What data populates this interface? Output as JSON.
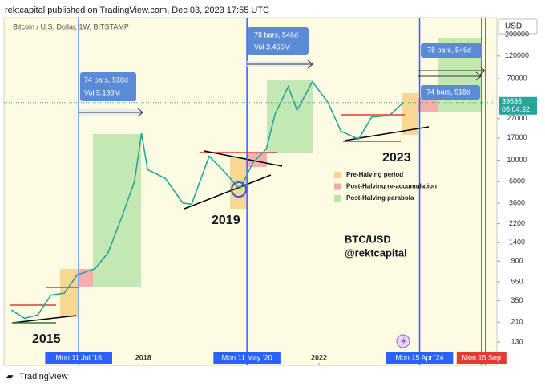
{
  "header": "rektcapital published on TradingView.com, Dec 03, 2023 17:55 UTC",
  "footer": "TradingView",
  "chart_data": {
    "type": "line",
    "title": "Bitcoin / U.S. Dollar, 1W, BITSTAMP",
    "currency": "USD",
    "countdown": "06:04:32",
    "last_price": 39536,
    "color": "#26a69a",
    "log_scale": true,
    "x": [
      2015.0,
      2015.3,
      2015.6,
      2015.9,
      2016.2,
      2016.5,
      2016.9,
      2017.2,
      2017.5,
      2017.8,
      2017.96,
      2018.1,
      2018.5,
      2018.9,
      2019.1,
      2019.5,
      2019.8,
      2020.2,
      2020.5,
      2020.8,
      2021.0,
      2021.3,
      2021.5,
      2021.85,
      2022.2,
      2022.5,
      2022.9,
      2023.2,
      2023.6,
      2023.92
    ],
    "values": [
      280,
      230,
      250,
      400,
      420,
      650,
      750,
      1100,
      2500,
      6000,
      19000,
      8000,
      6500,
      3600,
      3500,
      11000,
      8000,
      5000,
      9500,
      13000,
      30000,
      58000,
      33000,
      65000,
      40000,
      20000,
      16500,
      28000,
      29000,
      39536
    ],
    "xlim": [
      2014.83,
      2026.05
    ],
    "ylim": [
      75,
      300000
    ],
    "xticks": [
      {
        "value": 2016.53,
        "label": "Mon 11 Jul '16"
      },
      2018,
      {
        "value": 2020.36,
        "label": "Mon 11 May '20"
      },
      2022,
      {
        "value": 2024.29,
        "label": "Mon 15 Apr '24"
      },
      {
        "value": 2025.7,
        "label": "Mon 15 Sep"
      }
    ],
    "yticks": [
      200000,
      120000,
      70000,
      27000,
      17000,
      10000,
      6000,
      3600,
      2200,
      1400,
      900,
      550,
      350,
      210,
      130
    ],
    "legend": [
      {
        "name": "Pre-Halving period",
        "color": "#f9d38a"
      },
      {
        "name": "Post-Halving re-accumulation",
        "color": "#f4a7a7"
      },
      {
        "name": "Post-Halving parabola",
        "color": "#b5e3a8"
      }
    ],
    "annotations": {
      "cycle_2015": "2015",
      "cycle_2019": "2019",
      "cycle_2023": "2023",
      "pair": "BTC/USD",
      "author": "@rektcapital"
    },
    "measures": [
      {
        "bars": "74 bars, 518d",
        "vol": "Vol 5.133M"
      },
      {
        "bars": "78 bars, 546d",
        "vol": "Vol 3.466M"
      },
      {
        "bars": "78 bars, 546d"
      },
      {
        "bars": "74 bars, 518d"
      }
    ]
  }
}
